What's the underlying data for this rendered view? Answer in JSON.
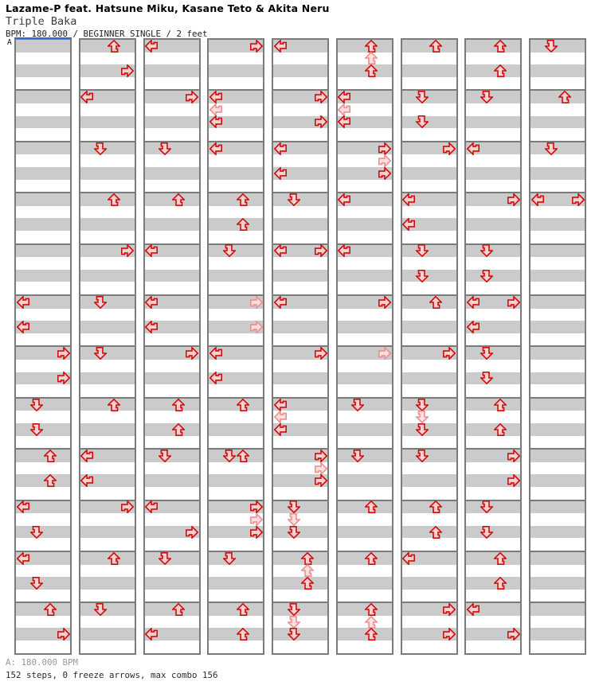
{
  "header": {
    "artist": "Lazame-P feat. Hatsune Miku, Kasane Teto & Akita Neru",
    "song_title": "Triple Baka",
    "meta_line": "BPM: 180.000 / BEGINNER SINGLE / 2 feet",
    "section_label": "A"
  },
  "footer": {
    "bpm_line": "A: 180.000 BPM",
    "stats_line": "152 steps, 0 freeze arrows, max combo 156"
  },
  "chart_data": {
    "type": "ddr-stepchart",
    "title": "Triple Baka",
    "bpm": 180.0,
    "difficulty": "BEGINNER SINGLE",
    "feet": 2,
    "steps": 152,
    "freeze_arrows": 0,
    "max_combo": 156,
    "columns": 9,
    "measures_per_column": 12,
    "beats_per_measure": 4,
    "lanes": [
      "L",
      "D",
      "U",
      "R"
    ],
    "section_markers": [
      {
        "label": "A",
        "column": 1,
        "measure": 1,
        "bpm": 180.0
      }
    ],
    "colors": {
      "beat_stripe": "#cbcbcb",
      "off_stripe": "#ffffff",
      "measure_border": "#7b7b7b",
      "section_line": "#2e6fd6",
      "arrow_outline": "#cd0e0e",
      "arrow_fill": "#fdd0d0",
      "arrow_outline_light": "#ea9090",
      "arrow_fill_light": "#ffdede"
    },
    "arrows_format": [
      "column(1-9)",
      "measure(1-12)",
      "row(8th-note 0-7)",
      "direction",
      "variant: l=light (optional)"
    ],
    "arrows": [
      [
        1,
        6,
        0,
        "L"
      ],
      [
        1,
        6,
        4,
        "L"
      ],
      [
        1,
        7,
        0,
        "R"
      ],
      [
        1,
        7,
        4,
        "R"
      ],
      [
        1,
        8,
        0,
        "D"
      ],
      [
        1,
        8,
        4,
        "D"
      ],
      [
        1,
        9,
        0,
        "U"
      ],
      [
        1,
        9,
        4,
        "U"
      ],
      [
        1,
        10,
        0,
        "L"
      ],
      [
        1,
        10,
        4,
        "D"
      ],
      [
        1,
        11,
        0,
        "L"
      ],
      [
        1,
        11,
        4,
        "D"
      ],
      [
        1,
        12,
        0,
        "U"
      ],
      [
        1,
        12,
        4,
        "R"
      ],
      [
        2,
        1,
        0,
        "U"
      ],
      [
        2,
        1,
        4,
        "R"
      ],
      [
        2,
        2,
        0,
        "L"
      ],
      [
        2,
        3,
        0,
        "D"
      ],
      [
        2,
        4,
        0,
        "U"
      ],
      [
        2,
        5,
        0,
        "R"
      ],
      [
        2,
        6,
        0,
        "D"
      ],
      [
        2,
        7,
        0,
        "D"
      ],
      [
        2,
        8,
        0,
        "U"
      ],
      [
        2,
        9,
        0,
        "L"
      ],
      [
        2,
        9,
        4,
        "L"
      ],
      [
        2,
        10,
        0,
        "R"
      ],
      [
        2,
        11,
        0,
        "U"
      ],
      [
        2,
        12,
        0,
        "D"
      ],
      [
        3,
        1,
        0,
        "L"
      ],
      [
        3,
        2,
        0,
        "R"
      ],
      [
        3,
        3,
        0,
        "D"
      ],
      [
        3,
        4,
        0,
        "U"
      ],
      [
        3,
        5,
        0,
        "L"
      ],
      [
        3,
        6,
        0,
        "L"
      ],
      [
        3,
        6,
        4,
        "L"
      ],
      [
        3,
        7,
        0,
        "R"
      ],
      [
        3,
        8,
        0,
        "U"
      ],
      [
        3,
        8,
        4,
        "U"
      ],
      [
        3,
        9,
        0,
        "D"
      ],
      [
        3,
        10,
        0,
        "L"
      ],
      [
        3,
        10,
        4,
        "R"
      ],
      [
        3,
        11,
        0,
        "D"
      ],
      [
        3,
        12,
        0,
        "U"
      ],
      [
        3,
        12,
        4,
        "L"
      ],
      [
        4,
        1,
        0,
        "R"
      ],
      [
        4,
        2,
        0,
        "L"
      ],
      [
        4,
        2,
        2,
        "L",
        "l"
      ],
      [
        4,
        2,
        4,
        "L"
      ],
      [
        4,
        3,
        0,
        "L"
      ],
      [
        4,
        4,
        0,
        "U"
      ],
      [
        4,
        4,
        4,
        "U"
      ],
      [
        4,
        5,
        0,
        "D"
      ],
      [
        4,
        6,
        0,
        "R",
        "l"
      ],
      [
        4,
        6,
        4,
        "R",
        "l"
      ],
      [
        4,
        7,
        0,
        "L"
      ],
      [
        4,
        7,
        4,
        "L"
      ],
      [
        4,
        8,
        0,
        "U"
      ],
      [
        4,
        9,
        0,
        "D"
      ],
      [
        4,
        9,
        0,
        "U"
      ],
      [
        4,
        10,
        0,
        "R"
      ],
      [
        4,
        10,
        2,
        "R",
        "l"
      ],
      [
        4,
        10,
        4,
        "R"
      ],
      [
        4,
        11,
        0,
        "D"
      ],
      [
        4,
        12,
        0,
        "U"
      ],
      [
        4,
        12,
        4,
        "U"
      ],
      [
        5,
        1,
        0,
        "L"
      ],
      [
        5,
        2,
        0,
        "R"
      ],
      [
        5,
        2,
        4,
        "R"
      ],
      [
        5,
        3,
        0,
        "L"
      ],
      [
        5,
        3,
        4,
        "L"
      ],
      [
        5,
        4,
        0,
        "D"
      ],
      [
        5,
        5,
        0,
        "L"
      ],
      [
        5,
        5,
        0,
        "R"
      ],
      [
        5,
        6,
        0,
        "L"
      ],
      [
        5,
        7,
        0,
        "R"
      ],
      [
        5,
        8,
        0,
        "L"
      ],
      [
        5,
        8,
        2,
        "L",
        "l"
      ],
      [
        5,
        8,
        4,
        "L"
      ],
      [
        5,
        9,
        0,
        "R"
      ],
      [
        5,
        9,
        2,
        "R",
        "l"
      ],
      [
        5,
        9,
        4,
        "R"
      ],
      [
        5,
        10,
        0,
        "D"
      ],
      [
        5,
        10,
        2,
        "D",
        "l"
      ],
      [
        5,
        10,
        4,
        "D"
      ],
      [
        5,
        11,
        0,
        "U"
      ],
      [
        5,
        11,
        2,
        "U",
        "l"
      ],
      [
        5,
        11,
        4,
        "U"
      ],
      [
        5,
        12,
        0,
        "D"
      ],
      [
        5,
        12,
        2,
        "D",
        "l"
      ],
      [
        5,
        12,
        4,
        "D"
      ],
      [
        6,
        1,
        0,
        "U"
      ],
      [
        6,
        1,
        2,
        "U",
        "l"
      ],
      [
        6,
        1,
        4,
        "U"
      ],
      [
        6,
        2,
        0,
        "L"
      ],
      [
        6,
        2,
        2,
        "L",
        "l"
      ],
      [
        6,
        2,
        4,
        "L"
      ],
      [
        6,
        3,
        0,
        "R"
      ],
      [
        6,
        3,
        2,
        "R",
        "l"
      ],
      [
        6,
        3,
        4,
        "R"
      ],
      [
        6,
        4,
        0,
        "L"
      ],
      [
        6,
        5,
        0,
        "L"
      ],
      [
        6,
        6,
        0,
        "R"
      ],
      [
        6,
        7,
        0,
        "R",
        "l"
      ],
      [
        6,
        8,
        0,
        "D"
      ],
      [
        6,
        9,
        0,
        "D"
      ],
      [
        6,
        10,
        0,
        "U"
      ],
      [
        6,
        11,
        0,
        "U"
      ],
      [
        6,
        12,
        0,
        "U"
      ],
      [
        6,
        12,
        2,
        "U",
        "l"
      ],
      [
        6,
        12,
        4,
        "U"
      ],
      [
        7,
        1,
        0,
        "U"
      ],
      [
        7,
        2,
        0,
        "D"
      ],
      [
        7,
        2,
        4,
        "D"
      ],
      [
        7,
        3,
        0,
        "R"
      ],
      [
        7,
        4,
        0,
        "L"
      ],
      [
        7,
        4,
        4,
        "L"
      ],
      [
        7,
        5,
        0,
        "D"
      ],
      [
        7,
        5,
        4,
        "D"
      ],
      [
        7,
        6,
        0,
        "U"
      ],
      [
        7,
        7,
        0,
        "R"
      ],
      [
        7,
        8,
        0,
        "D"
      ],
      [
        7,
        8,
        2,
        "D",
        "l"
      ],
      [
        7,
        8,
        4,
        "D"
      ],
      [
        7,
        9,
        0,
        "D"
      ],
      [
        7,
        10,
        0,
        "U"
      ],
      [
        7,
        10,
        4,
        "U"
      ],
      [
        7,
        11,
        0,
        "L"
      ],
      [
        7,
        12,
        0,
        "R"
      ],
      [
        7,
        12,
        4,
        "R"
      ],
      [
        8,
        1,
        0,
        "U"
      ],
      [
        8,
        1,
        4,
        "U"
      ],
      [
        8,
        2,
        0,
        "D"
      ],
      [
        8,
        3,
        0,
        "L"
      ],
      [
        8,
        4,
        0,
        "R"
      ],
      [
        8,
        5,
        0,
        "D"
      ],
      [
        8,
        5,
        4,
        "D"
      ],
      [
        8,
        6,
        0,
        "L"
      ],
      [
        8,
        6,
        0,
        "R"
      ],
      [
        8,
        6,
        4,
        "L"
      ],
      [
        8,
        7,
        0,
        "D"
      ],
      [
        8,
        7,
        4,
        "D"
      ],
      [
        8,
        8,
        0,
        "U"
      ],
      [
        8,
        8,
        4,
        "U"
      ],
      [
        8,
        9,
        0,
        "R"
      ],
      [
        8,
        9,
        4,
        "R"
      ],
      [
        8,
        10,
        0,
        "D"
      ],
      [
        8,
        10,
        4,
        "D"
      ],
      [
        8,
        11,
        0,
        "U"
      ],
      [
        8,
        11,
        4,
        "U"
      ],
      [
        8,
        12,
        0,
        "L"
      ],
      [
        8,
        12,
        4,
        "R"
      ],
      [
        9,
        1,
        0,
        "D"
      ],
      [
        9,
        2,
        0,
        "U"
      ],
      [
        9,
        3,
        0,
        "D"
      ],
      [
        9,
        4,
        0,
        "L"
      ],
      [
        9,
        4,
        0,
        "R"
      ]
    ]
  }
}
